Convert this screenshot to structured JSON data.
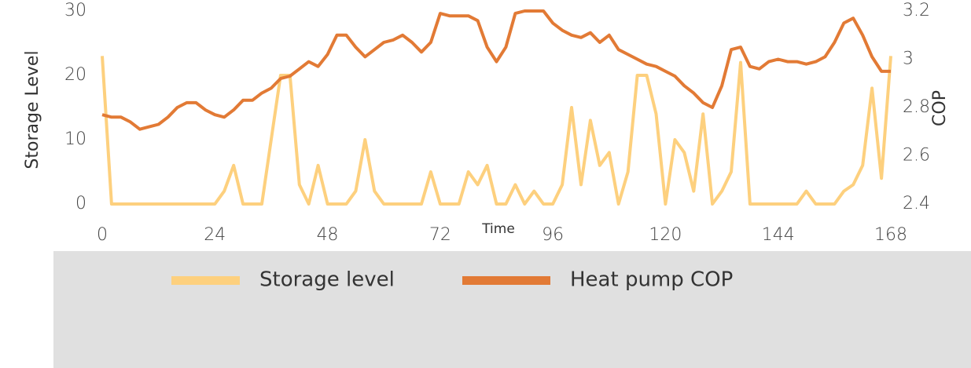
{
  "chart_data": {
    "type": "line",
    "x_label": "Time",
    "y_label": "Storage Level",
    "y2_label": "COP",
    "x": [
      0,
      2,
      4,
      6,
      8,
      10,
      12,
      14,
      16,
      18,
      20,
      22,
      24,
      26,
      28,
      30,
      32,
      34,
      36,
      38,
      40,
      42,
      44,
      46,
      48,
      50,
      52,
      54,
      56,
      58,
      60,
      62,
      64,
      66,
      68,
      70,
      72,
      74,
      76,
      78,
      80,
      82,
      84,
      86,
      88,
      90,
      92,
      94,
      96,
      98,
      100,
      102,
      104,
      106,
      108,
      110,
      112,
      114,
      116,
      118,
      120,
      122,
      124,
      126,
      128,
      130,
      132,
      134,
      136,
      138,
      140,
      142,
      144,
      146,
      148,
      150,
      152,
      154,
      156,
      158,
      160,
      162,
      164,
      166,
      168
    ],
    "xlim": [
      0,
      168
    ],
    "xticks": [
      0,
      24,
      48,
      72,
      96,
      120,
      144,
      168
    ],
    "ylim": [
      0,
      30
    ],
    "yticks": [
      0,
      10,
      20,
      30
    ],
    "y2lim": [
      2.4,
      3.2
    ],
    "y2ticks": [
      2.4,
      2.6,
      2.8,
      3,
      3.2
    ],
    "grid": false,
    "legend": "bottom",
    "series": [
      {
        "name": "Storage level",
        "color": "#fdd07e",
        "values": [
          23,
          0,
          0,
          0,
          0,
          0,
          0,
          0,
          0,
          0,
          0,
          0,
          0,
          2,
          6,
          0,
          0,
          0,
          10,
          20,
          20,
          3,
          0,
          6,
          0,
          0,
          0,
          2,
          10,
          2,
          0,
          0,
          0,
          0,
          0,
          5,
          0,
          0,
          0,
          5,
          3,
          6,
          0,
          0,
          3,
          0,
          2,
          0,
          0,
          3,
          15,
          3,
          13,
          6,
          8,
          0,
          5,
          20,
          20,
          14,
          0,
          10,
          8,
          2,
          14,
          0,
          2,
          5,
          22,
          0,
          0,
          0,
          0,
          0,
          0,
          2,
          0,
          0,
          0,
          2,
          3,
          6,
          18,
          4,
          23
        ]
      },
      {
        "name": "Heat pump COP",
        "color": "#e27a35",
        "axis": "y2",
        "values": [
          2.77,
          2.76,
          2.76,
          2.74,
          2.71,
          2.72,
          2.73,
          2.76,
          2.8,
          2.82,
          2.82,
          2.79,
          2.77,
          2.76,
          2.79,
          2.83,
          2.83,
          2.86,
          2.88,
          2.92,
          2.93,
          2.96,
          2.99,
          2.97,
          3.02,
          3.1,
          3.1,
          3.05,
          3.01,
          3.04,
          3.07,
          3.08,
          3.1,
          3.07,
          3.03,
          3.07,
          3.19,
          3.18,
          3.18,
          3.18,
          3.16,
          3.05,
          2.99,
          3.05,
          3.19,
          3.2,
          3.2,
          3.2,
          3.15,
          3.12,
          3.1,
          3.09,
          3.11,
          3.07,
          3.1,
          3.04,
          3.02,
          3.0,
          2.98,
          2.97,
          2.95,
          2.93,
          2.89,
          2.86,
          2.82,
          2.8,
          2.89,
          3.04,
          3.05,
          2.97,
          2.96,
          2.99,
          3.0,
          2.99,
          2.99,
          2.98,
          2.99,
          3.01,
          3.07,
          3.15,
          3.17,
          3.1,
          3.01,
          2.95,
          2.95
        ]
      }
    ]
  }
}
